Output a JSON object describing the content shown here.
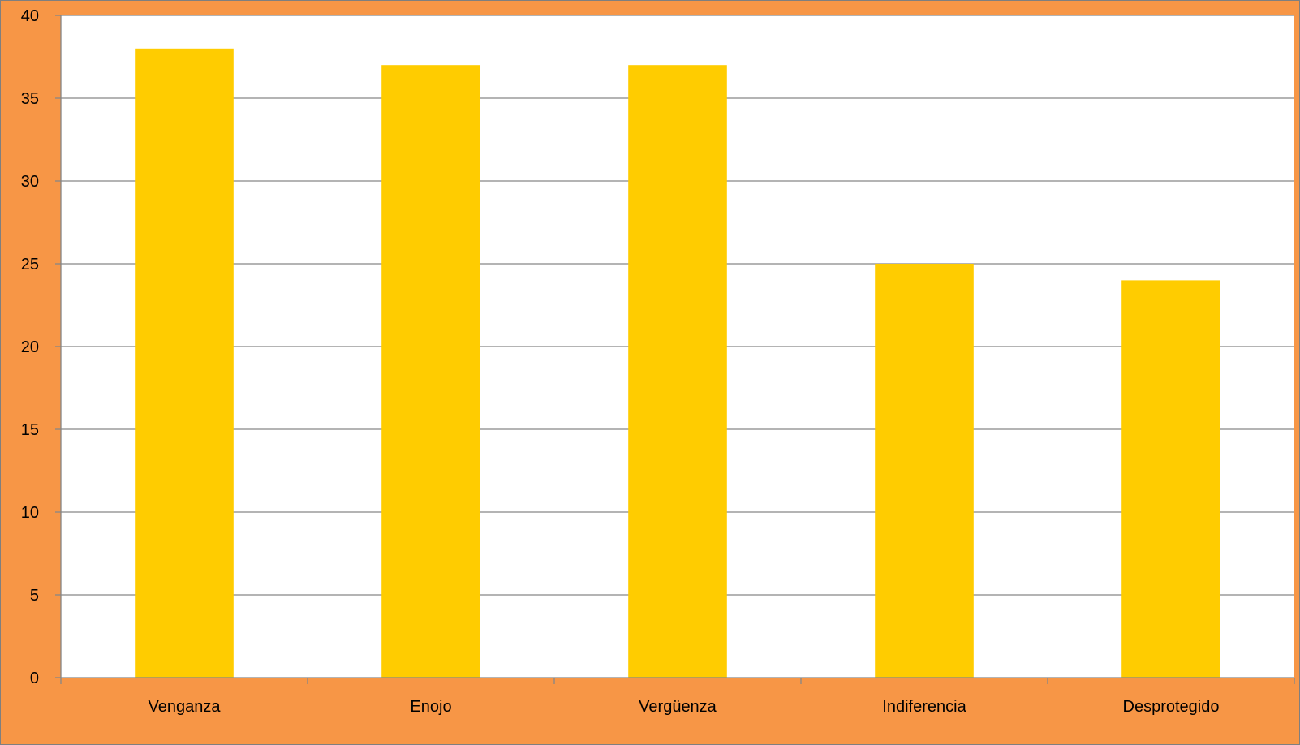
{
  "colors": {
    "background": "#F79646",
    "plot_area": "#FFFFFF",
    "bar": "#FFCC00",
    "gridline": "#868686",
    "axis": "#868686",
    "border": "#7F7F7F"
  },
  "chart_data": {
    "type": "bar",
    "title": "",
    "xlabel": "",
    "ylabel": "",
    "categories": [
      "Venganza",
      "Enojo",
      "Vergüenza",
      "Indiferencia",
      "Desprotegido"
    ],
    "series": [
      {
        "values": [
          38,
          37,
          37,
          25,
          24
        ]
      }
    ],
    "ylim": [
      0,
      40
    ],
    "yticks": [
      0,
      5,
      10,
      15,
      20,
      25,
      30,
      35,
      40
    ],
    "grid": true,
    "legend": "none"
  }
}
